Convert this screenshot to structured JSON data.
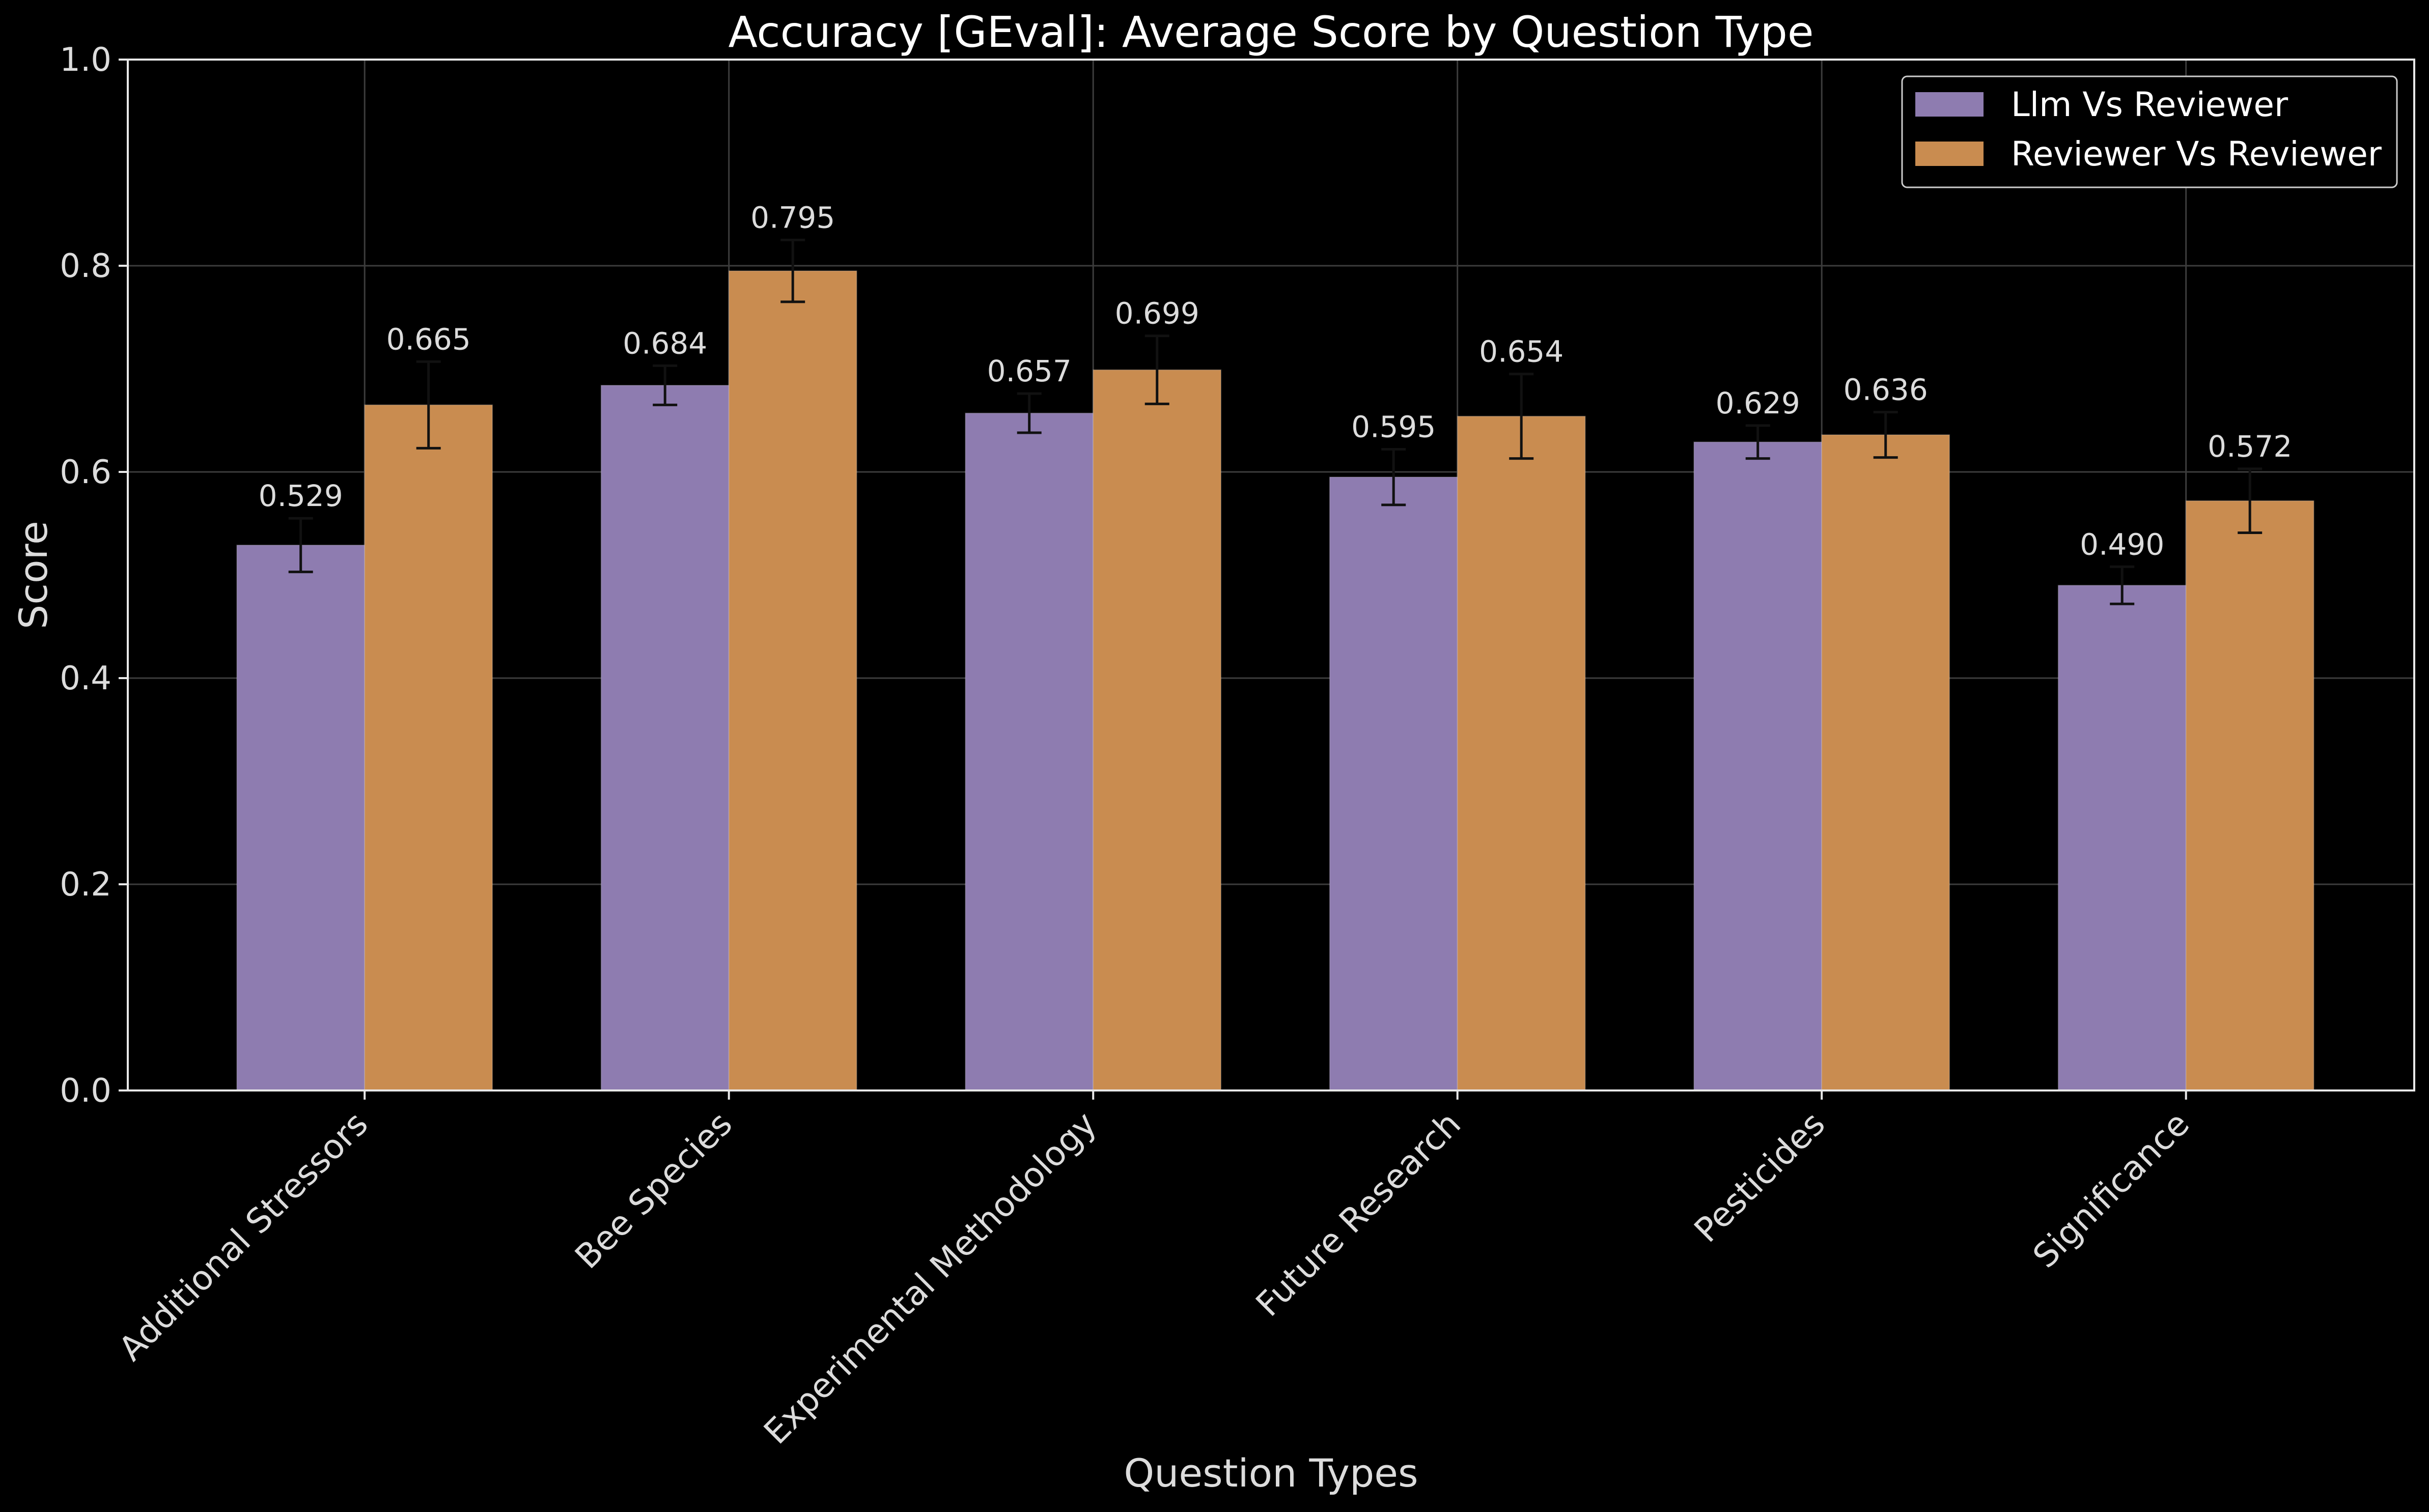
{
  "chart_data": {
    "type": "bar",
    "title": "Accuracy [GEval]: Average Score by Question Type",
    "xlabel": "Question Types",
    "ylabel": "Score",
    "ylim": [
      0,
      1.0
    ],
    "yticks": [
      "0.0",
      "0.2",
      "0.4",
      "0.6",
      "0.8",
      "1.0"
    ],
    "grid": true,
    "legend_position": "top-right",
    "categories": [
      "Additional Stressors",
      "Bee Species",
      "Experimental Methodology",
      "Future Research",
      "Pesticides",
      "Significance"
    ],
    "series": [
      {
        "name": "Llm Vs Reviewer",
        "color": "#8e7cb0",
        "values": [
          0.529,
          0.684,
          0.657,
          0.595,
          0.629,
          0.49
        ],
        "labels": [
          "0.529",
          "0.684",
          "0.657",
          "0.595",
          "0.629",
          "0.490"
        ],
        "error_low": [
          0.503,
          0.665,
          0.638,
          0.568,
          0.613,
          0.472
        ],
        "error_high": [
          0.555,
          0.703,
          0.676,
          0.622,
          0.645,
          0.508
        ]
      },
      {
        "name": "Reviewer Vs Reviewer",
        "color": "#c98c50",
        "values": [
          0.665,
          0.795,
          0.699,
          0.654,
          0.636,
          0.572
        ],
        "labels": [
          "0.665",
          "0.795",
          "0.699",
          "0.654",
          "0.636",
          "0.572"
        ],
        "error_low": [
          0.623,
          0.765,
          0.666,
          0.613,
          0.614,
          0.541
        ],
        "error_high": [
          0.707,
          0.825,
          0.732,
          0.695,
          0.658,
          0.603
        ]
      }
    ]
  }
}
